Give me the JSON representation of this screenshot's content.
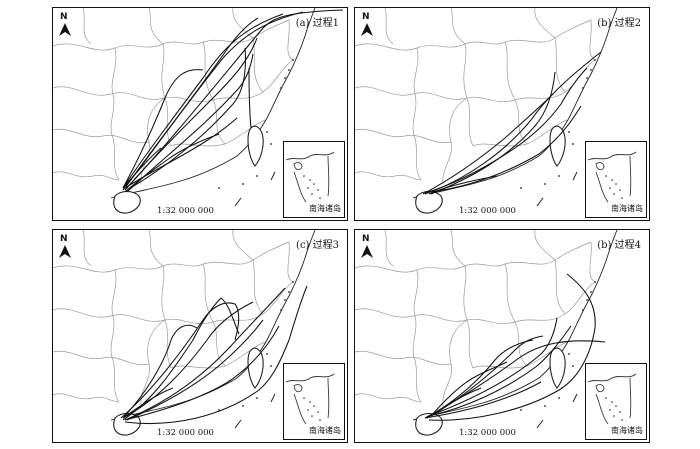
{
  "panels": [
    {
      "id": "a",
      "title": "(a) 过程1",
      "scale": "1:32 000 000",
      "inset": "南海诸岛",
      "north": "N"
    },
    {
      "id": "b",
      "title": "(b) 过程2",
      "scale": "1:32 000 000",
      "inset": "南海诸岛",
      "north": "N"
    },
    {
      "id": "c",
      "title": "(c) 过程3",
      "scale": "1:32 000 000",
      "inset": "南海诸岛",
      "north": "N"
    },
    {
      "id": "d",
      "title": "(b) 过程4",
      "scale": "1:32 000 000",
      "inset": "南海诸岛",
      "north": "N"
    }
  ],
  "colors": {
    "track": "#111111",
    "boundary": "#9a9a9a",
    "coast": "#222222",
    "frame": "#111111"
  }
}
